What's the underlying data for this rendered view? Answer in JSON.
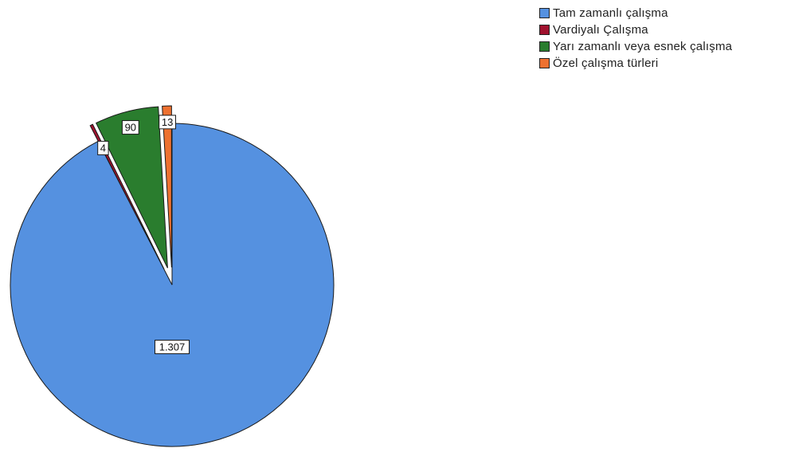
{
  "chart_data": {
    "type": "pie",
    "title": "",
    "categories": [
      "Tam zamanlı çalışma",
      "Vardiyalı Çalışma",
      "Yarı zamanlı veya esnek çalışma",
      "Özel çalışma türleri"
    ],
    "values": [
      1307,
      4,
      90,
      13
    ],
    "data_labels": [
      "1.307",
      "4",
      "90",
      "13"
    ],
    "colors": [
      "#5591e0",
      "#a0122e",
      "#2a7d2e",
      "#ee7130"
    ],
    "exploded": [
      false,
      true,
      true,
      true
    ],
    "start": "12 o'clock",
    "direction": "clockwise",
    "legend_position": "top-right"
  }
}
